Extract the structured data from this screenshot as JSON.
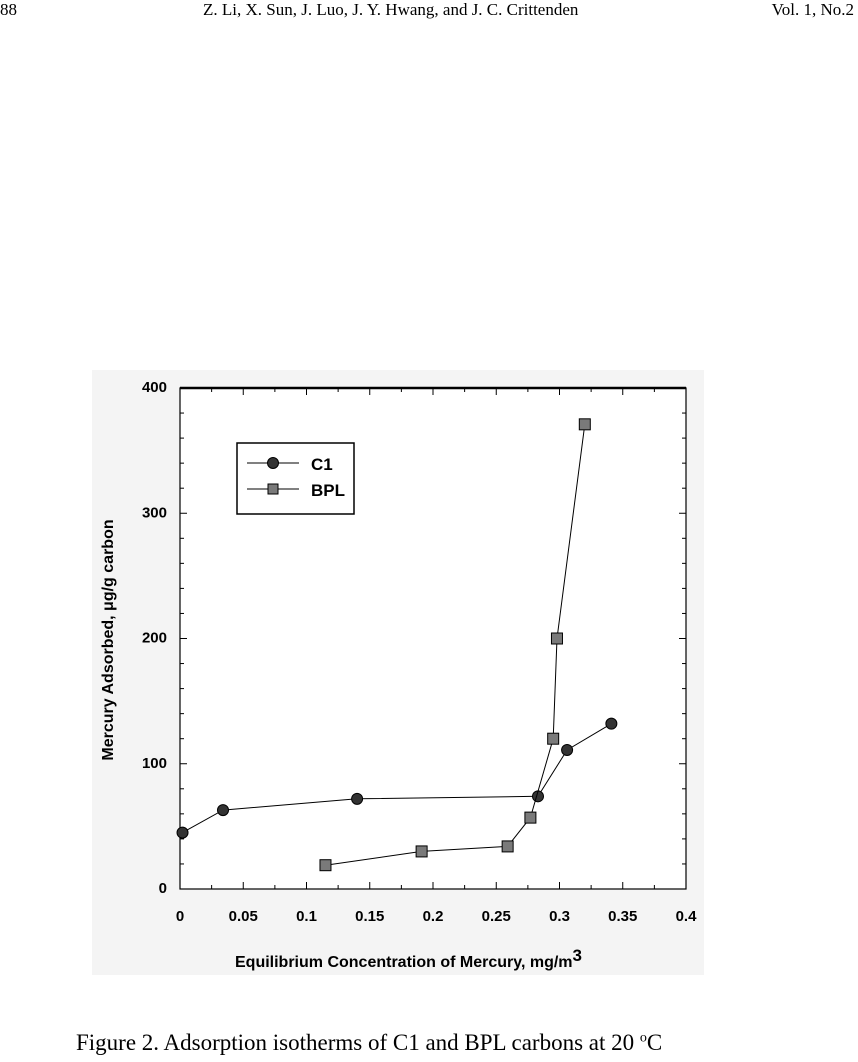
{
  "header": {
    "page_number": "88",
    "authors": "Z. Li, X. Sun, J. Luo,  J. Y. Hwang, and J. C. Crittenden",
    "volume": "Vol. 1, No.2"
  },
  "caption": {
    "text": "Figure 2. Adsorption isotherms of C1 and BPL carbons at 20",
    "degree_symbol": "o",
    "unit": "C"
  },
  "chart_data": {
    "type": "line",
    "xlabel": "Equilibrium Concentration of Mercury, mg/m",
    "xlabel_superscript": "3",
    "ylabel": "Mercury Adsorbed, μg/g carbon",
    "xlim": [
      0,
      0.4
    ],
    "ylim": [
      0,
      400
    ],
    "x_ticks": [
      "0",
      "0.05",
      "0.1",
      "0.15",
      "0.2",
      "0.25",
      "0.3",
      "0.35",
      "0.4"
    ],
    "y_ticks": [
      "0",
      "100",
      "200",
      "300",
      "400"
    ],
    "grid": false,
    "legend_position": "top-left",
    "series": [
      {
        "name": "C1",
        "marker": "circle",
        "points": [
          {
            "x": 0.002,
            "y": 45
          },
          {
            "x": 0.034,
            "y": 63
          },
          {
            "x": 0.14,
            "y": 72
          },
          {
            "x": 0.283,
            "y": 74
          },
          {
            "x": 0.306,
            "y": 111
          },
          {
            "x": 0.341,
            "y": 132
          }
        ]
      },
      {
        "name": "BPL",
        "marker": "square",
        "points": [
          {
            "x": 0.115,
            "y": 19
          },
          {
            "x": 0.191,
            "y": 30
          },
          {
            "x": 0.259,
            "y": 34
          },
          {
            "x": 0.277,
            "y": 57
          },
          {
            "x": 0.295,
            "y": 120
          },
          {
            "x": 0.298,
            "y": 200
          },
          {
            "x": 0.32,
            "y": 371
          }
        ]
      }
    ]
  }
}
